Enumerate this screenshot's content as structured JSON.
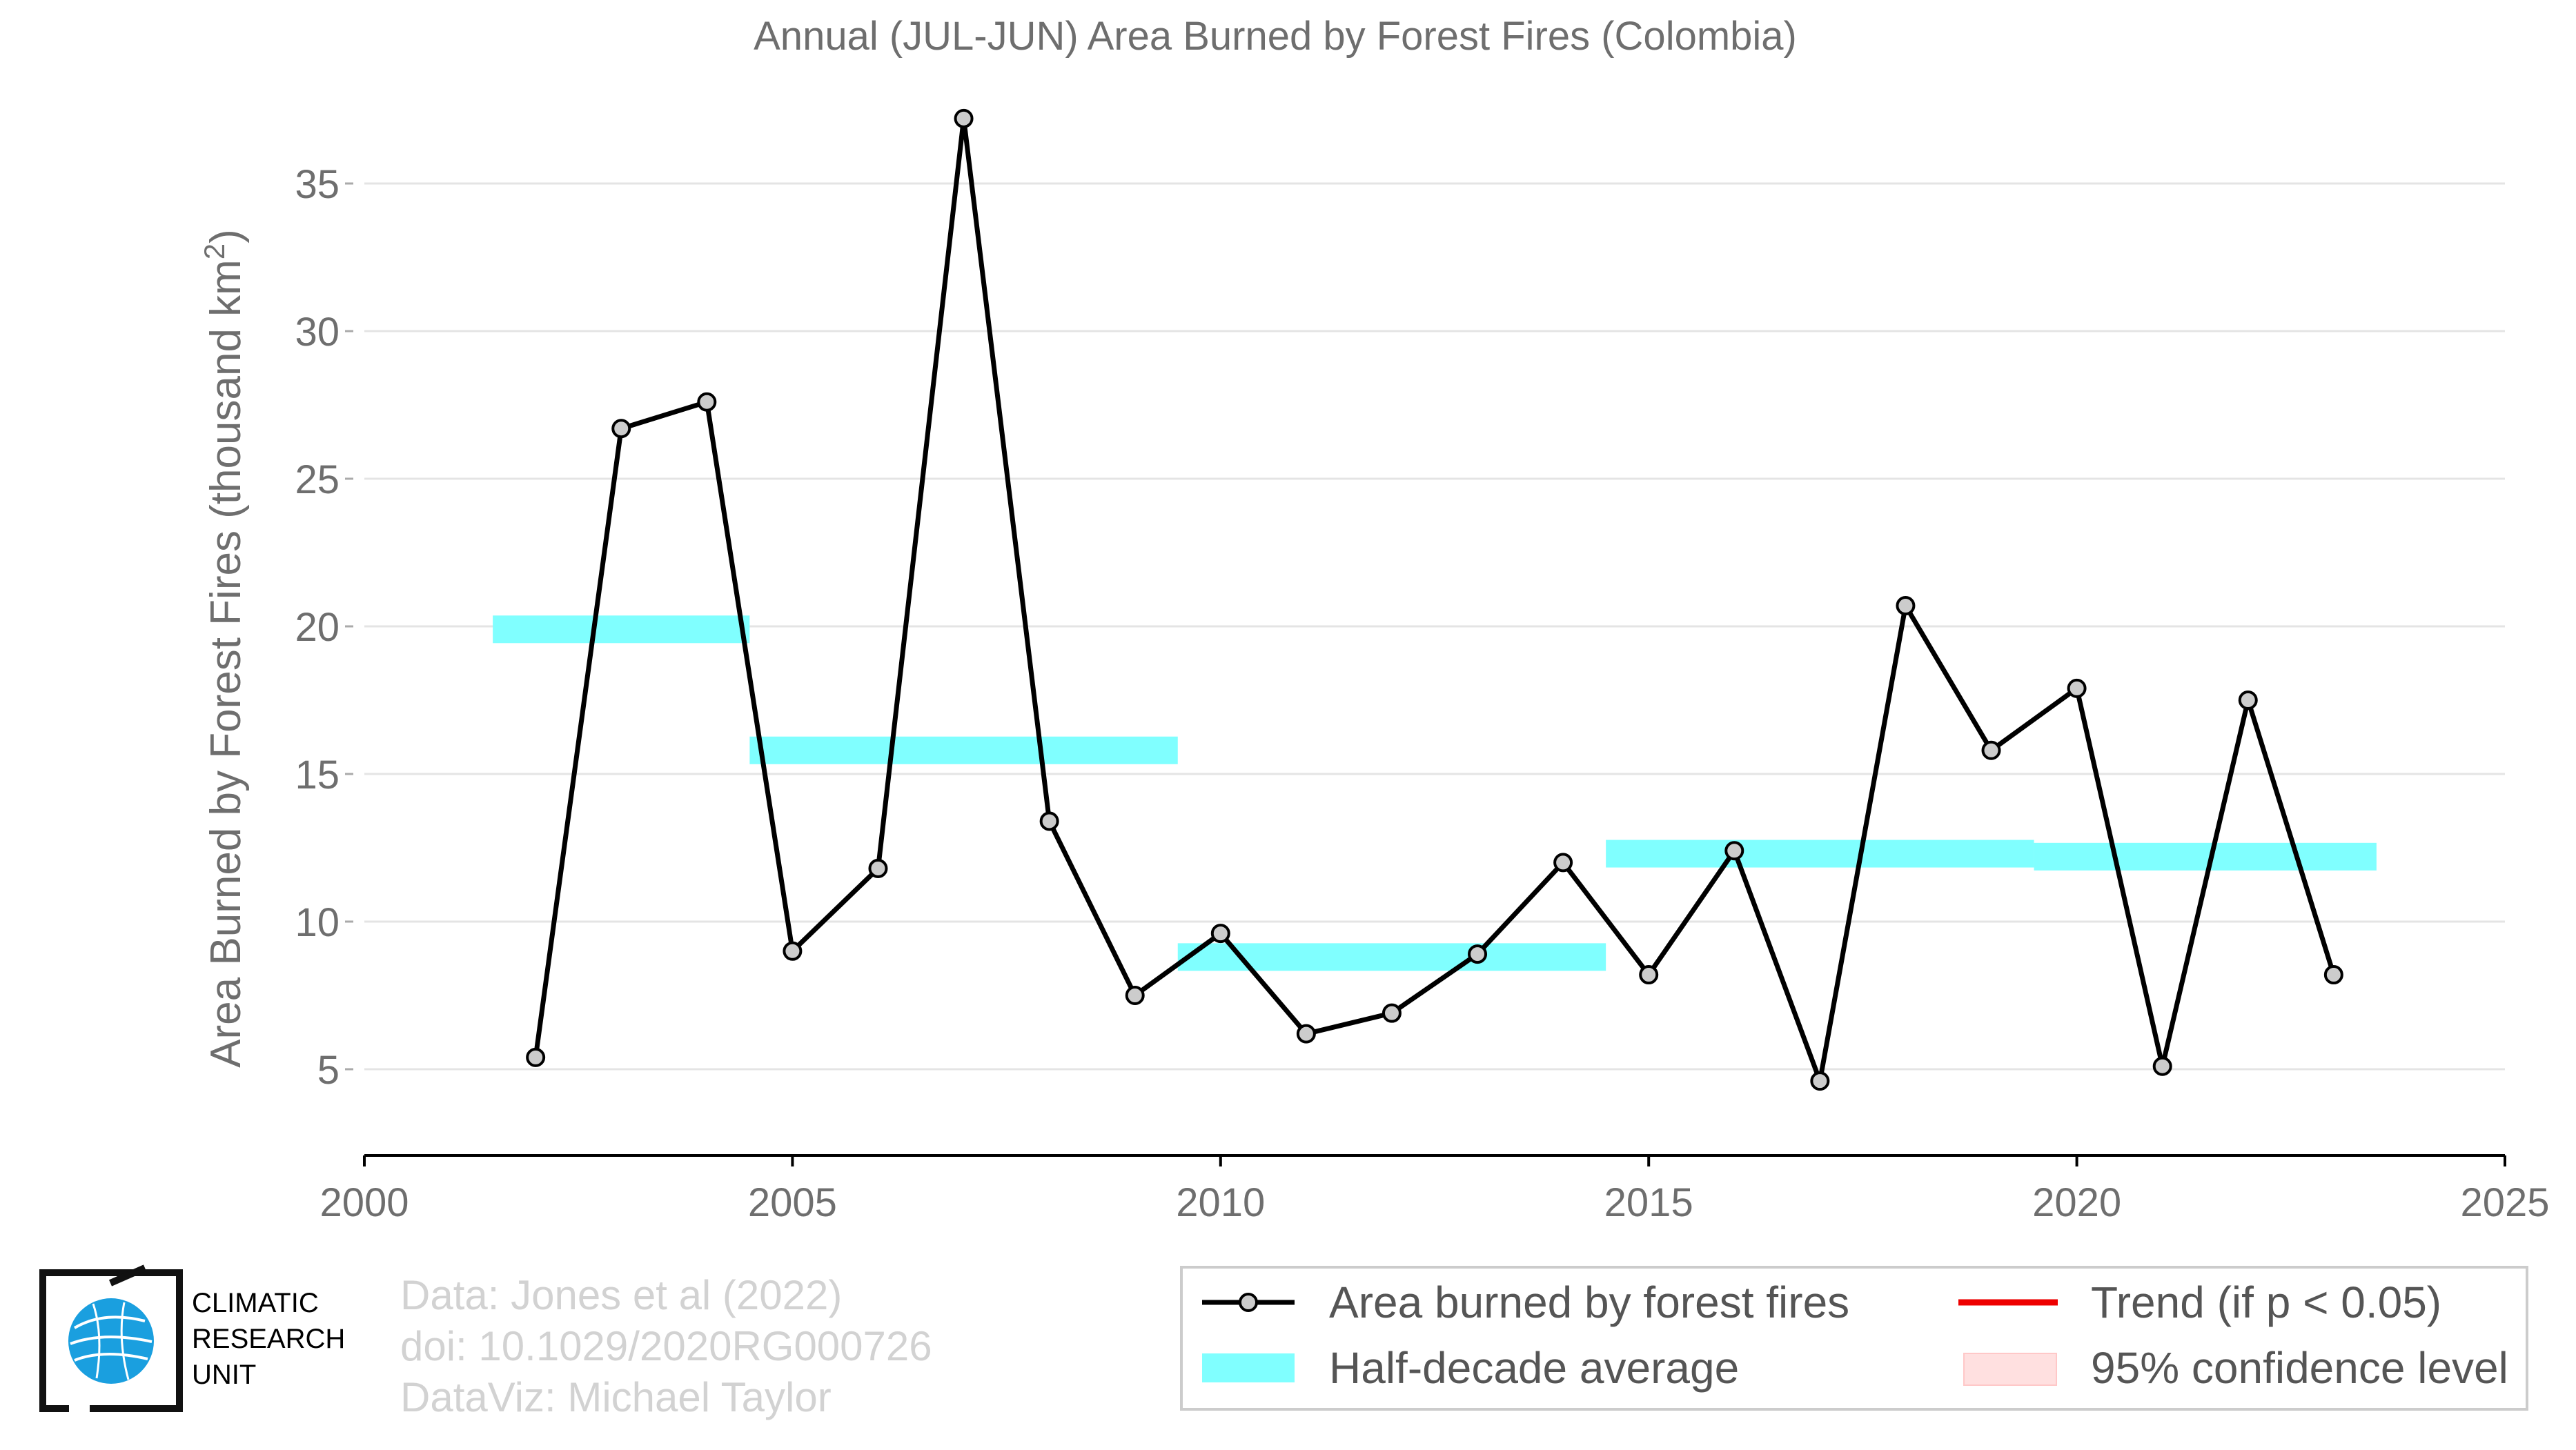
{
  "chart_data": {
    "type": "line",
    "title": "Annual (JUL-JUN) Area Burned by Forest Fires (Colombia)",
    "xlabel": "",
    "ylabel": "Area Burned by Forest Fires (thousand km",
    "ylabel_superscript": "2",
    "ylabel_close": ")",
    "xlim": [
      2000,
      2025
    ],
    "ylim": [
      2,
      38
    ],
    "x_ticks": [
      2000,
      2005,
      2010,
      2015,
      2020,
      2025
    ],
    "y_ticks": [
      5,
      10,
      15,
      20,
      25,
      30,
      35
    ],
    "grid": "horizontal",
    "legend_position": "bottom-right",
    "series": [
      {
        "name": "Area burned by forest fires",
        "color": "#000000",
        "x": [
          2002,
          2003,
          2004,
          2005,
          2006,
          2007,
          2008,
          2009,
          2010,
          2011,
          2012,
          2013,
          2014,
          2015,
          2016,
          2017,
          2018,
          2019,
          2020,
          2021,
          2022,
          2023
        ],
        "y": [
          5.4,
          26.7,
          27.6,
          9.0,
          11.8,
          37.2,
          13.4,
          7.5,
          9.6,
          6.2,
          6.9,
          8.9,
          12.0,
          8.2,
          12.4,
          4.6,
          20.7,
          15.8,
          17.9,
          5.1,
          17.5,
          8.2
        ]
      },
      {
        "name": "Half-decade average",
        "color": "#80ffff",
        "segments": [
          {
            "x0": 2001.5,
            "x1": 2004.5,
            "y": 19.9
          },
          {
            "x0": 2004.5,
            "x1": 2009.5,
            "y": 15.8
          },
          {
            "x0": 2009.5,
            "x1": 2014.5,
            "y": 8.8
          },
          {
            "x0": 2014.5,
            "x1": 2019.5,
            "y": 12.3
          },
          {
            "x0": 2019.5,
            "x1": 2023.5,
            "y": 12.2
          }
        ]
      }
    ],
    "legend": [
      {
        "label": "Area burned by forest fires",
        "style": "line-marker",
        "color": "#000000"
      },
      {
        "label": "Half-decade average",
        "style": "band",
        "color": "#80ffff"
      },
      {
        "label": "Trend (if p < 0.05)",
        "style": "line",
        "color": "#ee0000"
      },
      {
        "label": "95% confidence level",
        "style": "band",
        "color": "#ffe0e0"
      }
    ]
  },
  "credits": {
    "line1": "Data: Jones et al (2022)",
    "line2": "doi: 10.1029/2020RG000726",
    "line3": "DataViz: Michael Taylor"
  },
  "logo": {
    "line1": "CLIMATIC",
    "line2": "RESEARCH",
    "line3": "UNIT",
    "icon": "globe-icon"
  }
}
